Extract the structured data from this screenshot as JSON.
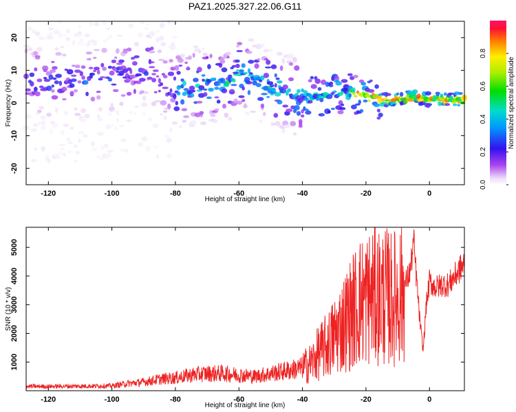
{
  "title": "PAZ1.2025.327.22.06.G11",
  "chart_data": [
    {
      "type": "heatmap",
      "xlabel": "Height of straight line (km)",
      "ylabel": "Frequency (Hz)",
      "xlim": [
        -127,
        11
      ],
      "ylim": [
        -25,
        25
      ],
      "xticks": [
        -120,
        -100,
        -80,
        -60,
        -40,
        -20,
        0
      ],
      "yticks": [
        -20,
        -10,
        0,
        10,
        20
      ],
      "ridge": {
        "x": [
          -127,
          -120,
          -115,
          -110,
          -105,
          -100,
          -95,
          -90,
          -88,
          -85,
          -80,
          -75,
          -70,
          -65,
          -60,
          -55,
          -50,
          -45,
          -40,
          -35,
          -30,
          -25,
          -20,
          -15,
          -10,
          -5,
          0,
          5,
          11
        ],
        "y": [
          7,
          6,
          7,
          6,
          7,
          8,
          9,
          10,
          11,
          7,
          4,
          5,
          6,
          5,
          9,
          7,
          5,
          3,
          2,
          2,
          3,
          3,
          2,
          1,
          1,
          2,
          1,
          1,
          1
        ]
      },
      "colorbar": {
        "label": "Normalized spectral amplitude",
        "range": [
          0,
          1
        ],
        "ticks": [
          "0.0",
          "0.2",
          "0.4",
          "0.6",
          "0.8"
        ]
      }
    },
    {
      "type": "line",
      "xlabel": "Height of straight line (km)",
      "ylabel": "SNR (10 * v/v)",
      "xlim": [
        -127,
        11
      ],
      "ylim": [
        0,
        5700
      ],
      "xticks": [
        -120,
        -100,
        -80,
        -60,
        -40,
        -20,
        0
      ],
      "yticks": [
        1000,
        2000,
        3000,
        4000,
        5000
      ],
      "series": [
        {
          "name": "SNR",
          "color": "#ee2222",
          "x": [
            -127,
            -120,
            -110,
            -100,
            -95,
            -90,
            -85,
            -80,
            -75,
            -70,
            -65,
            -60,
            -55,
            -50,
            -45,
            -40,
            -37,
            -35,
            -32,
            -30,
            -28,
            -26,
            -24,
            -22,
            -20,
            -18,
            -16,
            -14,
            -12,
            -10,
            -8,
            -6,
            -5,
            -4,
            -3,
            -2,
            -1,
            0,
            2,
            4,
            6,
            8,
            10,
            11
          ],
          "values": [
            150,
            150,
            160,
            170,
            250,
            300,
            400,
            450,
            550,
            600,
            600,
            550,
            500,
            600,
            700,
            800,
            1000,
            1300,
            1600,
            1900,
            2200,
            2500,
            2800,
            3100,
            3200,
            3300,
            3300,
            3300,
            3200,
            3300,
            3600,
            4200,
            5200,
            3800,
            2400,
            1400,
            3000,
            3800,
            3600,
            3700,
            3700,
            4000,
            4300,
            4400
          ]
        }
      ]
    }
  ]
}
